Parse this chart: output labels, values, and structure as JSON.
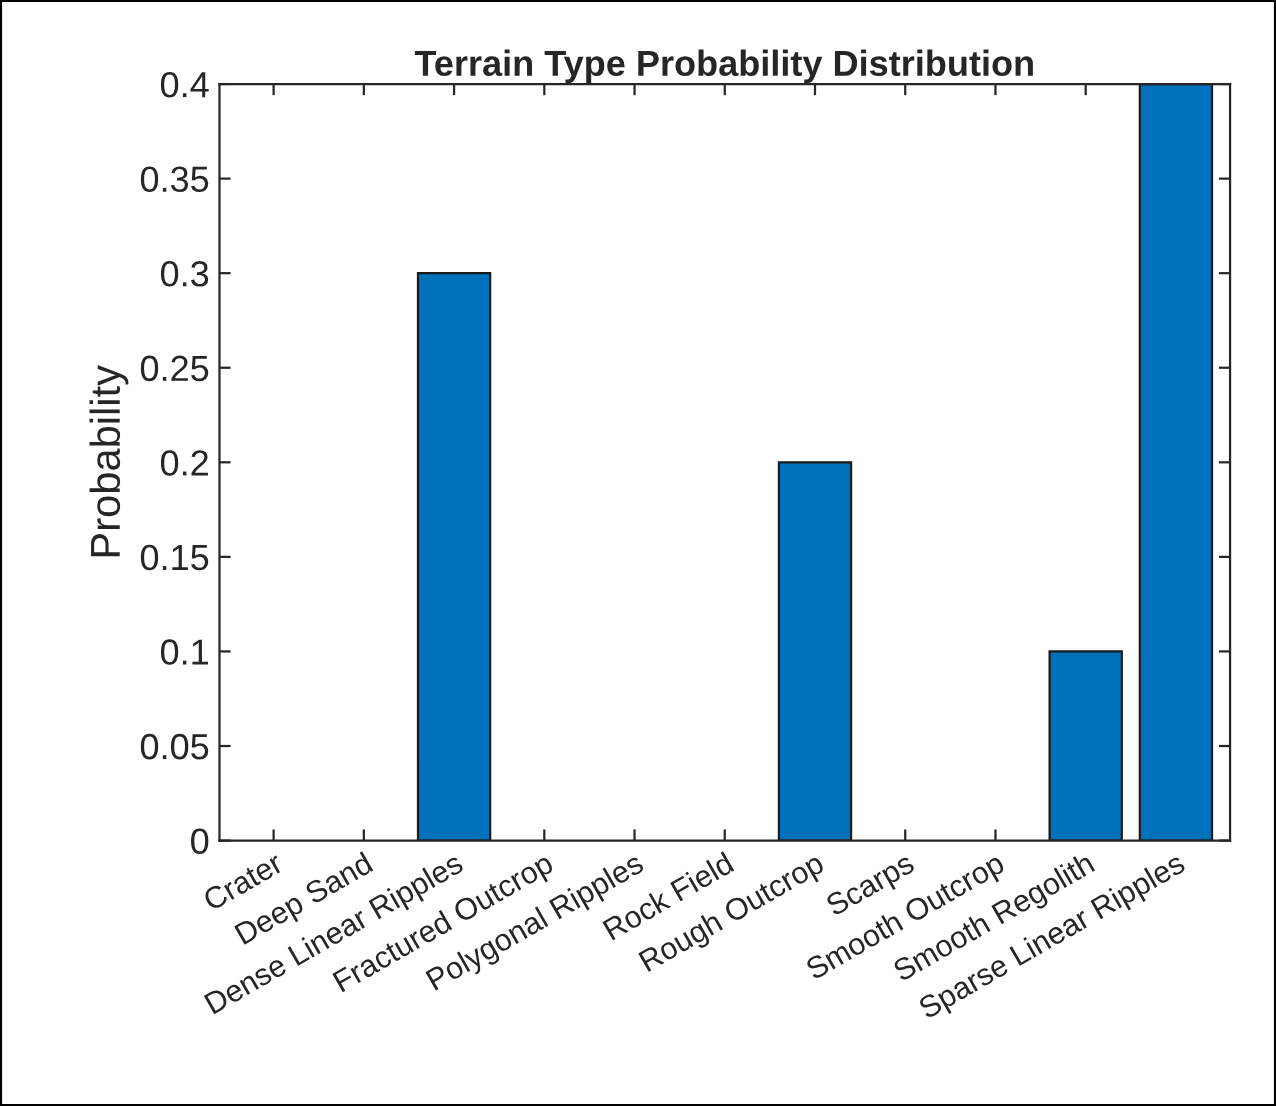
{
  "chart_data": {
    "type": "bar",
    "title": "Terrain Type Probability Distribution",
    "ylabel": "Probability",
    "categories": [
      "Crater",
      "Deep Sand",
      "Dense Linear Ripples",
      "Fractured Outcrop",
      "Polygonal Ripples",
      "Rock Field",
      "Rough Outcrop",
      "Scarps",
      "Smooth Outcrop",
      "Smooth Regolith",
      "Sparse Linear Ripples"
    ],
    "values": [
      0,
      0,
      0.3,
      0,
      0,
      0,
      0.2,
      0,
      0,
      0.1,
      0.4
    ],
    "color": "#0072bd",
    "ylim": [
      0,
      0.4
    ],
    "yticks": [
      0,
      0.05,
      0.1,
      0.15,
      0.2,
      0.25,
      0.3,
      0.35,
      0.4
    ],
    "grid": false,
    "legend": false
  }
}
